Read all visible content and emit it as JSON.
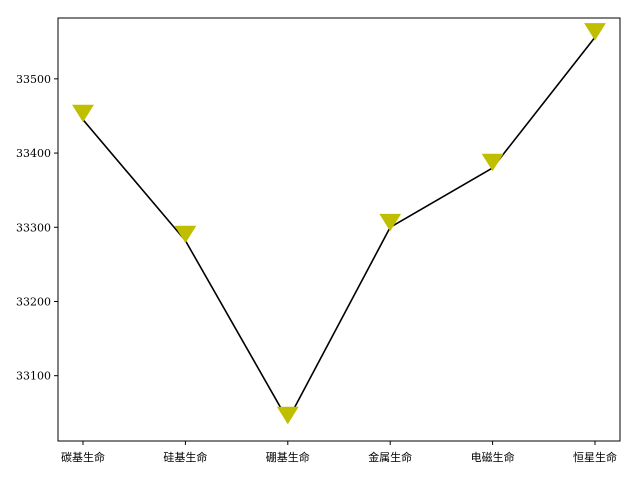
{
  "chart_data": {
    "type": "line",
    "categories": [
      "碳基生命",
      "硅基生命",
      "硼基生命",
      "金属生命",
      "电磁生命",
      "恒星生命"
    ],
    "series": [
      {
        "values": [
          33445,
          33282,
          33040,
          33300,
          33380,
          33556
        ]
      }
    ],
    "marker_values": [
      33455,
      33292,
      33048,
      33308,
      33389,
      33565
    ],
    "y_ticks": [
      33100,
      33200,
      33300,
      33400,
      33500
    ],
    "ylim": [
      33012,
      33582
    ],
    "title": "",
    "xlabel": "",
    "ylabel": "",
    "grid": false,
    "colors": {
      "line": "#000000",
      "marker": "#bfbf00",
      "axis": "#000000"
    }
  }
}
